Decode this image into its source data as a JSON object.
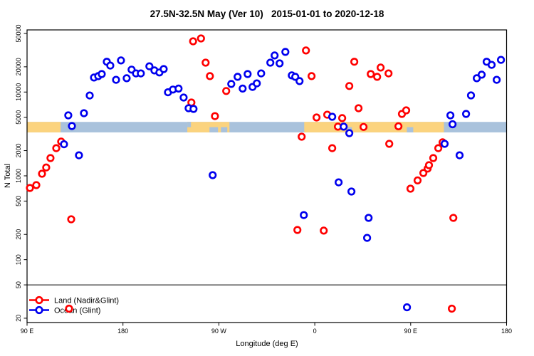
{
  "title": "27.5N-32.5N May (Ver 10)   2015-01-01 to 2020-12-18",
  "axes": {
    "x_label": "Longitude (deg E)",
    "y_label": "N Total",
    "x_range": [
      90,
      540
    ],
    "y_range": [
      20,
      50000
    ],
    "x_ticks": [
      {
        "pos": 90,
        "label": "90 E"
      },
      {
        "pos": 180,
        "label": "180"
      },
      {
        "pos": 270,
        "label": "90 W"
      },
      {
        "pos": 360,
        "label": "0"
      },
      {
        "pos": 450,
        "label": "90 E"
      },
      {
        "pos": 540,
        "label": "180"
      }
    ],
    "y_ticks": [
      {
        "v": 20,
        "label": "20"
      },
      {
        "v": 50,
        "label": "50"
      },
      {
        "v": 100,
        "label": "100"
      },
      {
        "v": 200,
        "label": "200"
      },
      {
        "v": 500,
        "label": "500"
      },
      {
        "v": 1000,
        "label": "1000"
      },
      {
        "v": 2000,
        "label": "2000"
      },
      {
        "v": 5000,
        "label": "5000"
      },
      {
        "v": 10000,
        "label": "10000"
      },
      {
        "v": 20000,
        "label": "20000"
      },
      {
        "v": 50000,
        "label": "50000"
      }
    ]
  },
  "legend": {
    "items": [
      {
        "label": "Land (Nadir&Glint)",
        "color": "#ff0000"
      },
      {
        "label": "Ocean (Glint)",
        "color": "#0000ee"
      }
    ]
  },
  "chart_data": {
    "type": "scatter",
    "title": "27.5N-32.5N May (Ver 10)   2015-01-01 to 2020-12-18",
    "xlabel": "Longitude (deg E)",
    "ylabel": "N Total",
    "y_scale": "log",
    "x_axis_note": "longitude plotted continuously eastward: 90E -> 180 -> 90W -> 0 -> 90E -> 180 (90 to 540 deg E)",
    "reference_line_y": 50,
    "marker": {
      "shape": "open-circle",
      "fill": "#ffffff",
      "radius": 4.3,
      "stroke_width": 2.6
    },
    "band": {
      "description": "land/ocean strip map along latitude band",
      "n_top": 4400,
      "n_bottom": 3300,
      "ocean_color": "#a9c2dc",
      "land_color": "#fbd37e",
      "land_segments": [
        [
          90,
          121.5
        ],
        [
          240.4,
          279.9
        ],
        [
          350.1,
          481.2
        ]
      ],
      "water_cutouts": [
        {
          "lon": [
            240.4,
            243.8
          ],
          "half": "top"
        },
        {
          "lon": [
            261.2,
            269.2
          ],
          "half": "bottom"
        },
        {
          "lon": [
            271.9,
            277.9
          ],
          "half": "bottom"
        },
        {
          "lon": [
            390.9,
            394.9
          ],
          "half": "bottom"
        },
        {
          "lon": [
            446.4,
            452.4
          ],
          "half": "bottom"
        }
      ]
    },
    "series": [
      {
        "name": "Land (Nadir&Glint)",
        "color": "#ff0000",
        "points": [
          [
            92.7,
            716
          ],
          [
            98.7,
            775
          ],
          [
            104.0,
            1060
          ],
          [
            108.0,
            1260
          ],
          [
            112.0,
            1630
          ],
          [
            117.4,
            2140
          ],
          [
            122.0,
            2560
          ],
          [
            129.4,
            26
          ],
          [
            131.4,
            303
          ],
          [
            244.2,
            7500
          ],
          [
            245.8,
            40300
          ],
          [
            253.2,
            43600
          ],
          [
            257.6,
            22400
          ],
          [
            261.6,
            15500
          ],
          [
            266.3,
            5160
          ],
          [
            276.9,
            10300
          ],
          [
            343.7,
            226
          ],
          [
            347.7,
            2930
          ],
          [
            351.7,
            31300
          ],
          [
            357.0,
            15500
          ],
          [
            361.7,
            4970
          ],
          [
            368.4,
            222
          ],
          [
            371.7,
            5370
          ],
          [
            376.4,
            2140
          ],
          [
            381.7,
            3860
          ],
          [
            385.7,
            4880
          ],
          [
            392.4,
            11800
          ],
          [
            397.1,
            23000
          ],
          [
            401.1,
            6410
          ],
          [
            405.8,
            3830
          ],
          [
            412.5,
            16400
          ],
          [
            418.5,
            15200
          ],
          [
            421.8,
            19600
          ],
          [
            429.2,
            16700
          ],
          [
            429.9,
            2410
          ],
          [
            438.5,
            3900
          ],
          [
            441.8,
            5480
          ],
          [
            445.8,
            6040
          ],
          [
            449.8,
            703
          ],
          [
            456.5,
            881
          ],
          [
            461.9,
            1080
          ],
          [
            465.9,
            1220
          ],
          [
            467.2,
            1340
          ],
          [
            471.2,
            1630
          ],
          [
            475.9,
            2140
          ],
          [
            479.9,
            2510
          ],
          [
            488.6,
            26
          ],
          [
            490.0,
            315
          ]
        ]
      },
      {
        "name": "Ocean (Glint)",
        "color": "#0000ee",
        "points": [
          [
            124.7,
            2380
          ],
          [
            128.7,
            5270
          ],
          [
            132.1,
            3930
          ],
          [
            138.7,
            1760
          ],
          [
            143.4,
            5590
          ],
          [
            148.8,
            9100
          ],
          [
            152.8,
            14900
          ],
          [
            156.8,
            15500
          ],
          [
            160.1,
            16400
          ],
          [
            164.8,
            23000
          ],
          [
            168.1,
            20700
          ],
          [
            173.5,
            14000
          ],
          [
            178.1,
            23800
          ],
          [
            183.5,
            14600
          ],
          [
            188.1,
            18500
          ],
          [
            192.2,
            16700
          ],
          [
            196.8,
            16700
          ],
          [
            204.8,
            20300
          ],
          [
            209.5,
            18100
          ],
          [
            214.2,
            17100
          ],
          [
            218.2,
            18800
          ],
          [
            222.2,
            9930
          ],
          [
            226.9,
            10700
          ],
          [
            232.2,
            11000
          ],
          [
            236.9,
            8590
          ],
          [
            241.6,
            6410
          ],
          [
            246.2,
            6280
          ],
          [
            264.2,
            1020
          ],
          [
            281.6,
            12500
          ],
          [
            287.6,
            15200
          ],
          [
            292.3,
            11000
          ],
          [
            297.0,
            16400
          ],
          [
            301.6,
            11500
          ],
          [
            305.6,
            12700
          ],
          [
            309.7,
            16700
          ],
          [
            318.3,
            22400
          ],
          [
            322.3,
            27300
          ],
          [
            327.0,
            22000
          ],
          [
            332.4,
            30100
          ],
          [
            338.4,
            15800
          ],
          [
            341.7,
            15200
          ],
          [
            345.7,
            13500
          ],
          [
            349.7,
            340
          ],
          [
            376.4,
            5070
          ],
          [
            382.4,
            837
          ],
          [
            387.1,
            3860
          ],
          [
            392.4,
            3230
          ],
          [
            394.4,
            650
          ],
          [
            409.1,
            182
          ],
          [
            410.5,
            315
          ],
          [
            446.5,
            27
          ],
          [
            481.9,
            2410
          ],
          [
            487.3,
            5270
          ],
          [
            489.3,
            4130
          ],
          [
            495.9,
            1760
          ],
          [
            502.0,
            5480
          ],
          [
            506.6,
            9120
          ],
          [
            512.0,
            14600
          ],
          [
            516.6,
            16100
          ],
          [
            521.3,
            23000
          ],
          [
            526.0,
            21100
          ],
          [
            530.7,
            14000
          ],
          [
            534.7,
            24200
          ]
        ]
      }
    ]
  }
}
